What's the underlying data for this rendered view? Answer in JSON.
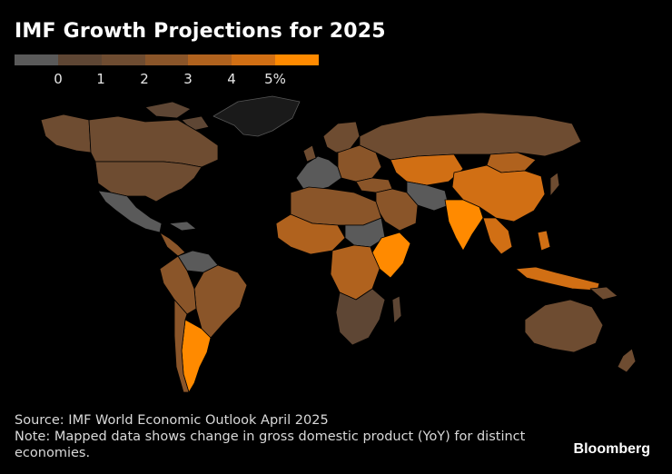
{
  "title": "IMF Growth Projections for 2025",
  "legend": {
    "colors": [
      "#5a5a5a",
      "#5e4634",
      "#6e4c31",
      "#8a5529",
      "#b0621e",
      "#d16f14",
      "#ff8a00"
    ],
    "ticks": [
      "0",
      "1",
      "2",
      "3",
      "4",
      "5%"
    ]
  },
  "source": "Source: IMF World Economic Outlook April 2025",
  "note": "Note: Mapped data shows change in gross domestic product (YoY) for distinct economies.",
  "brand": "Bloomberg"
}
